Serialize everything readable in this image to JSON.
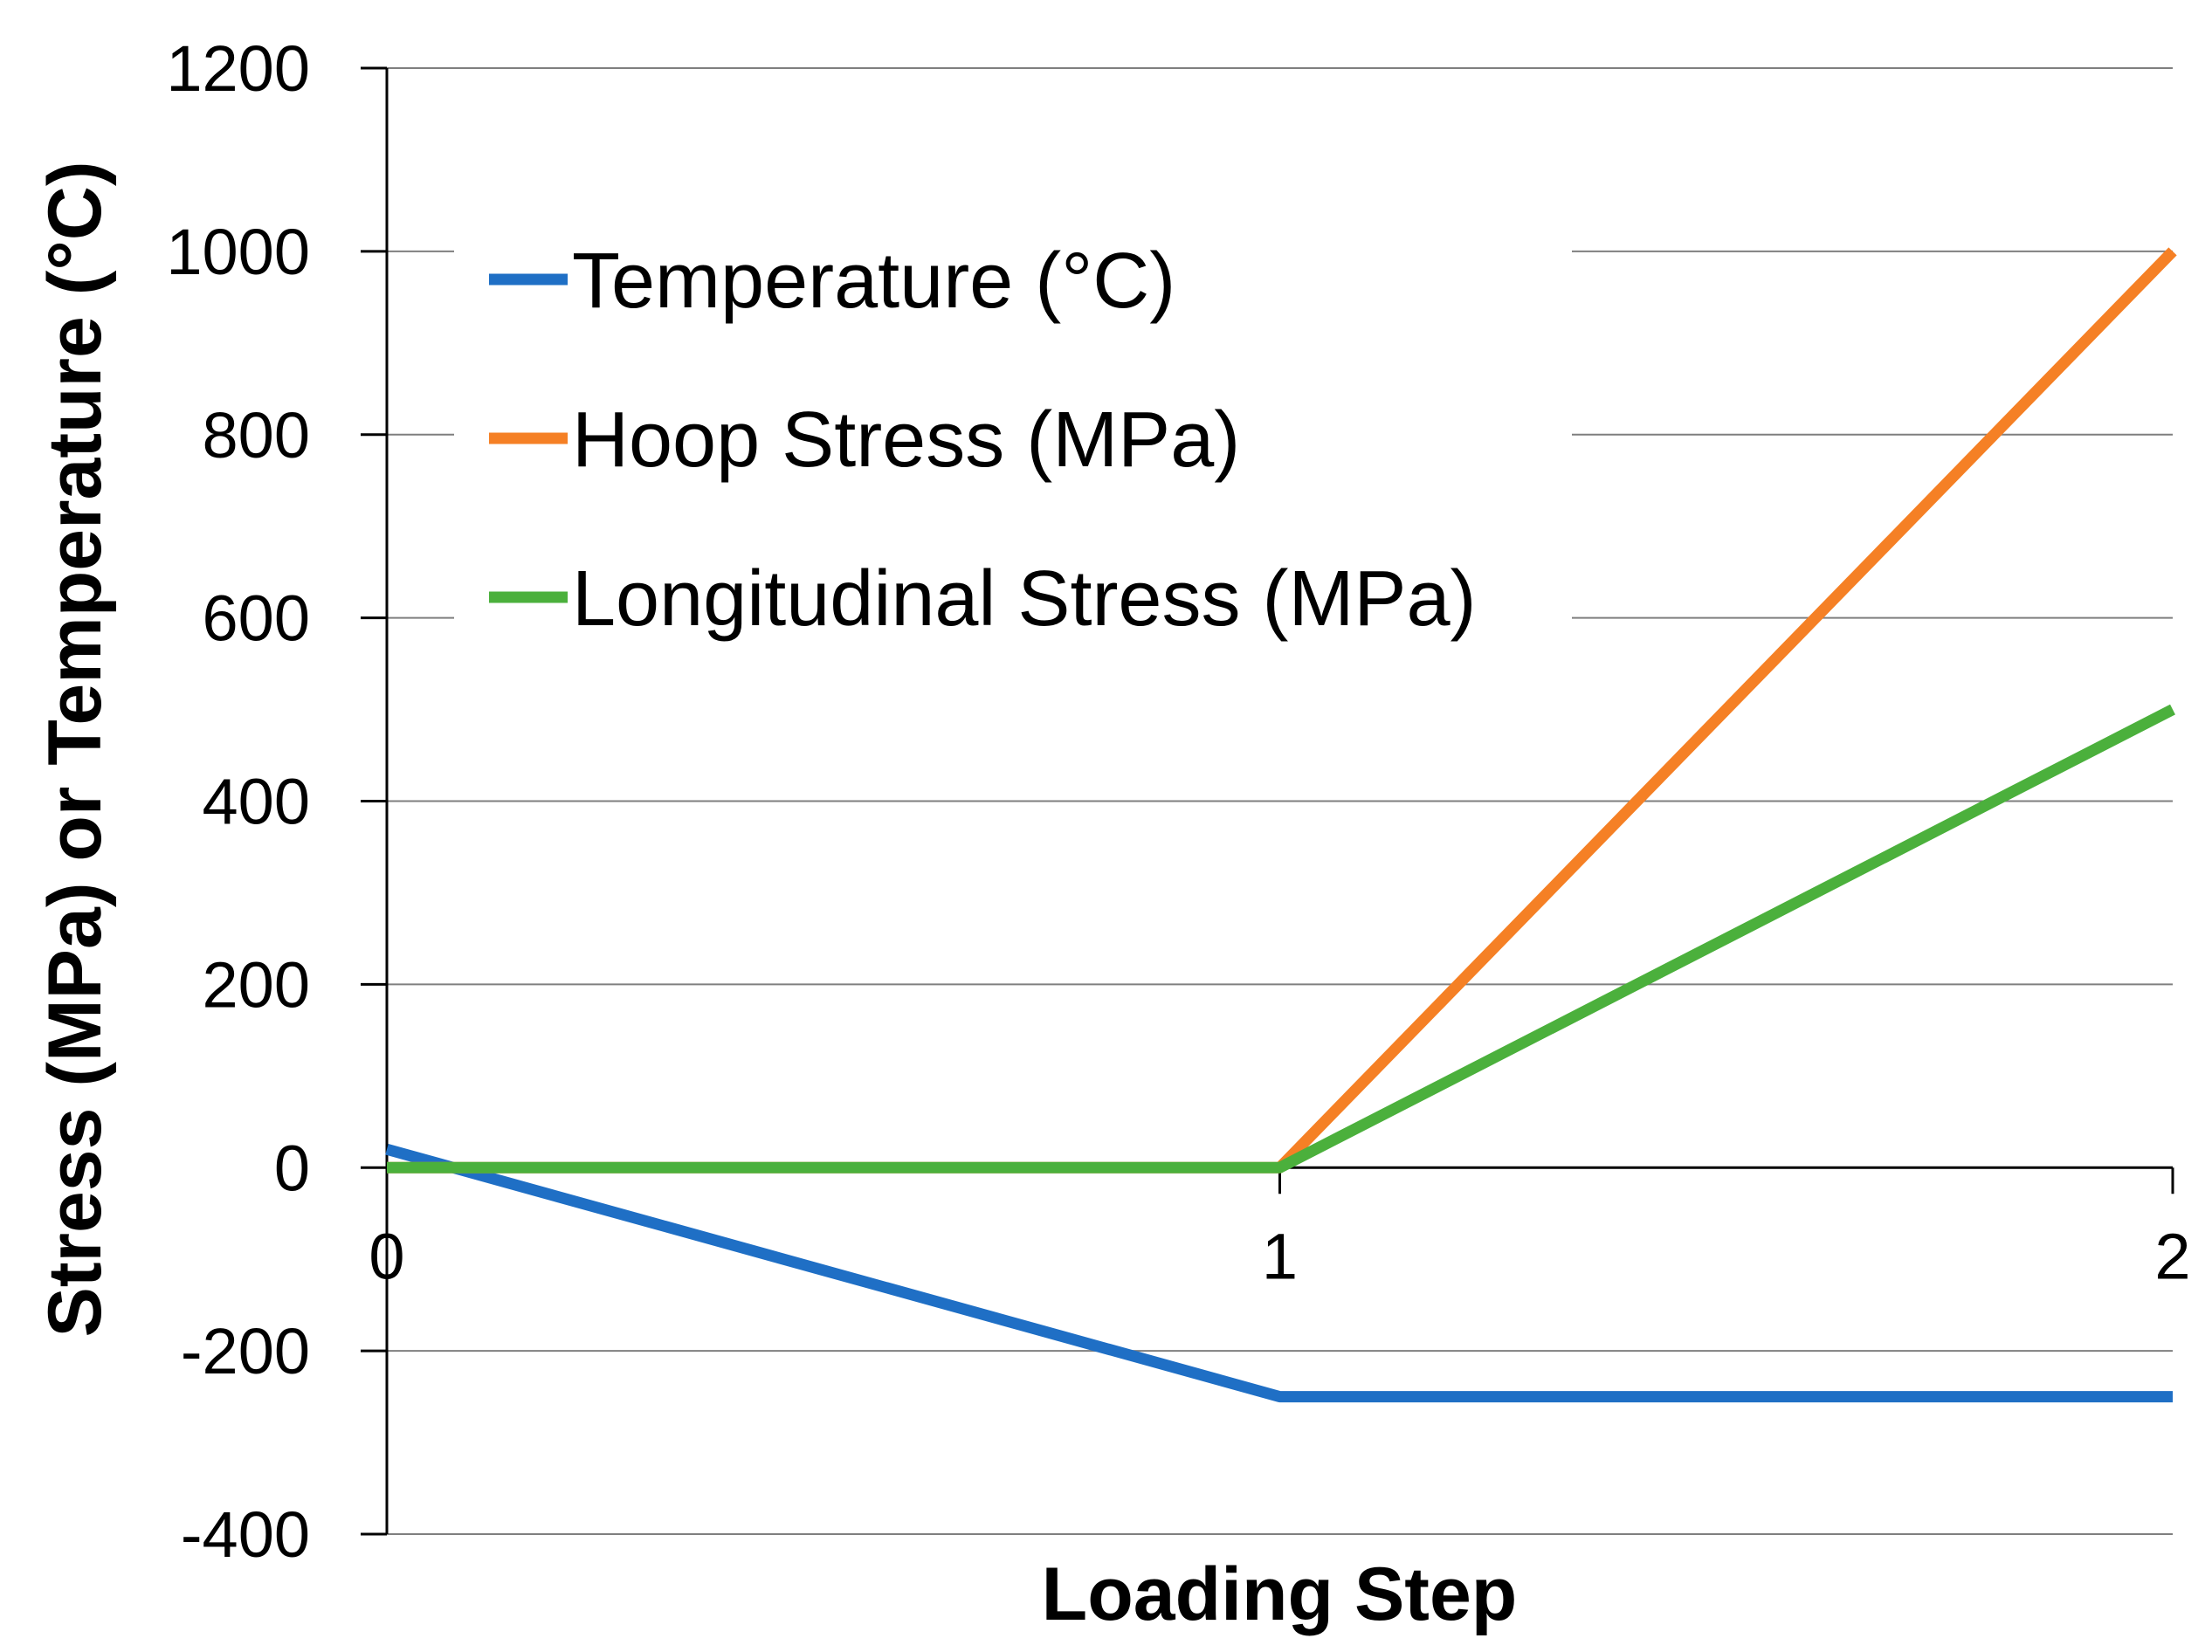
{
  "chart_data": {
    "type": "line",
    "title": "",
    "xlabel": "Loading Step",
    "ylabel": "Stress (MPa) or Temperature (°C)",
    "x": [
      0,
      1,
      2
    ],
    "x_tick_labels": [
      "0",
      "1",
      "2"
    ],
    "xlim": [
      0,
      2
    ],
    "ylim": [
      -400,
      1200
    ],
    "y_ticks": [
      -400,
      -200,
      0,
      200,
      400,
      600,
      800,
      1000,
      1200
    ],
    "y_tick_labels": [
      "-400",
      "-200",
      "0",
      "200",
      "400",
      "600",
      "800",
      "1000",
      "1200"
    ],
    "grid": true,
    "legend_position": "top-left",
    "series": [
      {
        "name": "Temperature (°C)",
        "color": "#1f6fc5",
        "values": [
          20,
          -250,
          -250
        ]
      },
      {
        "name": "Hoop Stress (MPa)",
        "color": "#f58025",
        "values": [
          0,
          0,
          1000
        ]
      },
      {
        "name": "Longitudinal Stress (MPa)",
        "color": "#4bb03c",
        "values": [
          0,
          0,
          500
        ]
      }
    ]
  }
}
